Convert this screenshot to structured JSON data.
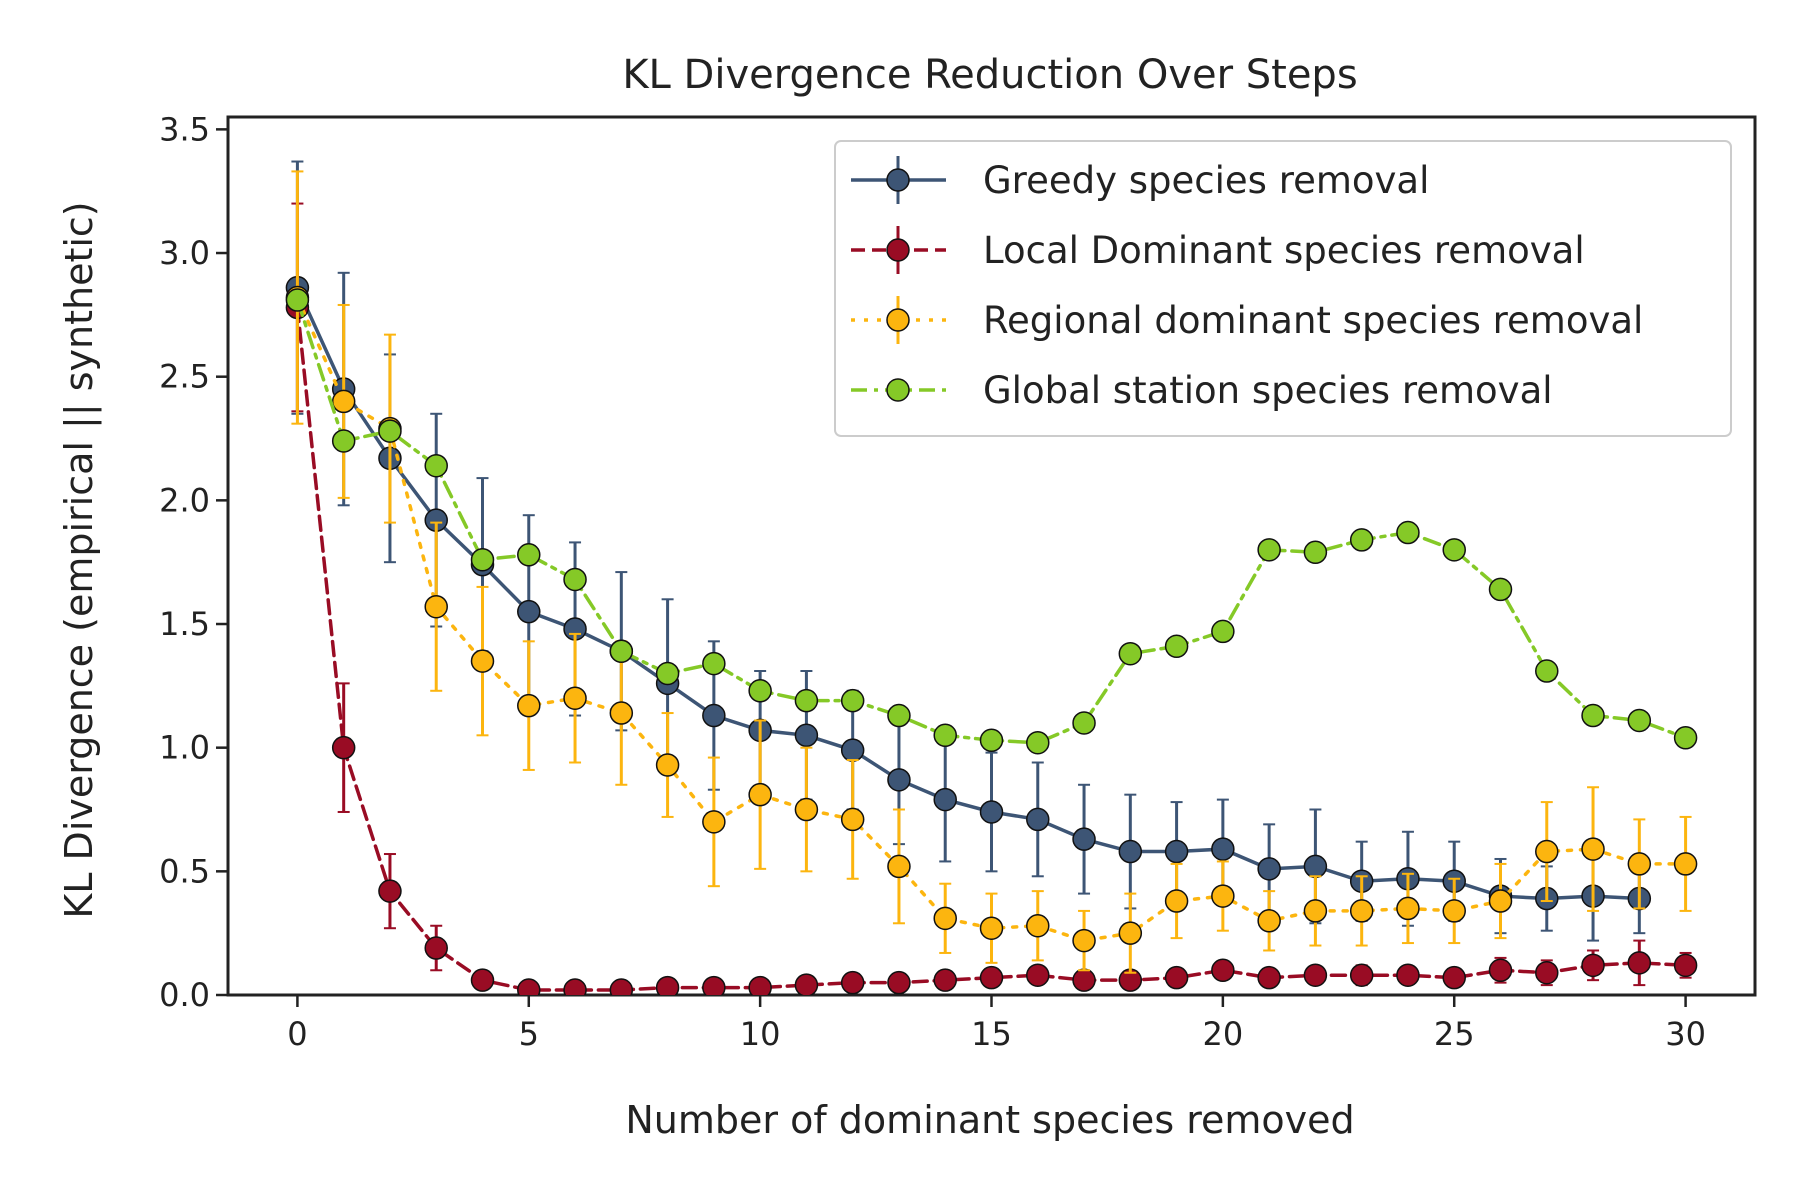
{
  "chart_data": {
    "type": "line",
    "title": "KL Divergence Reduction Over Steps",
    "xlabel": "Number of dominant species removed",
    "ylabel": "KL Divergence (empirical || synthetic)",
    "xlim": [
      -1.5,
      31.5
    ],
    "ylim": [
      0,
      3.55
    ],
    "xticks": [
      0,
      5,
      10,
      15,
      20,
      25,
      30
    ],
    "xtick_labels": [
      "0",
      "5",
      "10",
      "15",
      "20",
      "25",
      "30"
    ],
    "yticks": [
      0.0,
      0.5,
      1.0,
      1.5,
      2.0,
      2.5,
      3.0,
      3.5
    ],
    "ytick_labels": [
      "0.0",
      "0.5",
      "1.0",
      "1.5",
      "2.0",
      "2.5",
      "3.0",
      "3.5"
    ],
    "grid": false,
    "legend_position": "top-right",
    "x": [
      0,
      1,
      2,
      3,
      4,
      5,
      6,
      7,
      8,
      9,
      10,
      11,
      12,
      13,
      14,
      15,
      16,
      17,
      18,
      19,
      20,
      21,
      22,
      23,
      24,
      25,
      26,
      27,
      28,
      29,
      30
    ],
    "series": [
      {
        "name": "Greedy species removal",
        "color": "#3d5575",
        "line_style": "solid",
        "x": [
          0,
          1,
          2,
          3,
          4,
          5,
          6,
          7,
          8,
          9,
          10,
          11,
          12,
          13,
          14,
          15,
          16,
          17,
          18,
          19,
          20,
          21,
          22,
          23,
          24,
          25,
          26,
          27,
          28,
          29
        ],
        "values": [
          2.86,
          2.45,
          2.17,
          1.92,
          1.74,
          1.55,
          1.48,
          1.39,
          1.26,
          1.13,
          1.07,
          1.05,
          0.99,
          0.87,
          0.79,
          0.74,
          0.71,
          0.63,
          0.58,
          0.58,
          0.59,
          0.51,
          0.52,
          0.46,
          0.47,
          0.46,
          0.4,
          0.39,
          0.4,
          0.39
        ],
        "errors": [
          0.51,
          0.47,
          0.42,
          0.43,
          0.35,
          0.39,
          0.35,
          0.32,
          0.34,
          0.3,
          0.24,
          0.26,
          0.24,
          0.26,
          0.25,
          0.24,
          0.23,
          0.22,
          0.23,
          0.2,
          0.2,
          0.18,
          0.23,
          0.16,
          0.19,
          0.16,
          0.15,
          0.13,
          0.18,
          0.14
        ]
      },
      {
        "name": "Local Dominant species removal",
        "color": "#990c24",
        "line_style": "dashed",
        "x": [
          0,
          1,
          2,
          3,
          4,
          5,
          6,
          7,
          8,
          9,
          10,
          11,
          12,
          13,
          14,
          15,
          16,
          17,
          18,
          19,
          20,
          21,
          22,
          23,
          24,
          25,
          26,
          27,
          28,
          29,
          30
        ],
        "values": [
          2.78,
          1.0,
          0.42,
          0.19,
          0.06,
          0.02,
          0.02,
          0.02,
          0.03,
          0.03,
          0.03,
          0.04,
          0.05,
          0.05,
          0.06,
          0.07,
          0.08,
          0.06,
          0.06,
          0.07,
          0.1,
          0.07,
          0.08,
          0.08,
          0.08,
          0.07,
          0.1,
          0.09,
          0.12,
          0.13,
          0.12
        ],
        "errors": [
          0.42,
          0.26,
          0.15,
          0.09,
          0.03,
          0.02,
          0.02,
          0.02,
          0.02,
          0.02,
          0.02,
          0.02,
          0.02,
          0.02,
          0.03,
          0.03,
          0.03,
          0.03,
          0.03,
          0.03,
          0.03,
          0.03,
          0.03,
          0.04,
          0.03,
          0.03,
          0.05,
          0.05,
          0.06,
          0.09,
          0.05
        ]
      },
      {
        "name": "Regional dominant species removal",
        "color": "#fcb50f",
        "line_style": "dotted",
        "x": [
          0,
          1,
          2,
          3,
          4,
          5,
          6,
          7,
          8,
          9,
          10,
          11,
          12,
          13,
          14,
          15,
          16,
          17,
          18,
          19,
          20,
          21,
          22,
          23,
          24,
          25,
          26,
          27,
          28,
          29,
          30
        ],
        "values": [
          2.82,
          2.4,
          2.29,
          1.57,
          1.35,
          1.17,
          1.2,
          1.14,
          0.93,
          0.7,
          0.81,
          0.75,
          0.71,
          0.52,
          0.31,
          0.27,
          0.28,
          0.22,
          0.25,
          0.38,
          0.4,
          0.3,
          0.34,
          0.34,
          0.35,
          0.34,
          0.38,
          0.58,
          0.59,
          0.53,
          0.53
        ],
        "errors": [
          0.51,
          0.39,
          0.38,
          0.34,
          0.3,
          0.26,
          0.26,
          0.29,
          0.21,
          0.26,
          0.3,
          0.25,
          0.24,
          0.23,
          0.14,
          0.14,
          0.14,
          0.12,
          0.16,
          0.15,
          0.14,
          0.12,
          0.14,
          0.14,
          0.14,
          0.13,
          0.15,
          0.2,
          0.25,
          0.18,
          0.19
        ]
      },
      {
        "name": "Global station species removal",
        "color": "#85c927",
        "line_style": "dashdot",
        "x": [
          0,
          1,
          2,
          3,
          4,
          5,
          6,
          7,
          8,
          9,
          10,
          11,
          12,
          13,
          14,
          15,
          16,
          17,
          18,
          19,
          20,
          21,
          22,
          23,
          24,
          25,
          26,
          27,
          28,
          29,
          30
        ],
        "values": [
          2.81,
          2.24,
          2.28,
          2.14,
          1.76,
          1.78,
          1.68,
          1.39,
          1.3,
          1.34,
          1.23,
          1.19,
          1.19,
          1.13,
          1.05,
          1.03,
          1.02,
          1.1,
          1.38,
          1.41,
          1.47,
          1.8,
          1.79,
          1.84,
          1.87,
          1.8,
          1.64,
          1.31,
          1.13,
          1.11,
          1.04
        ]
      }
    ]
  }
}
